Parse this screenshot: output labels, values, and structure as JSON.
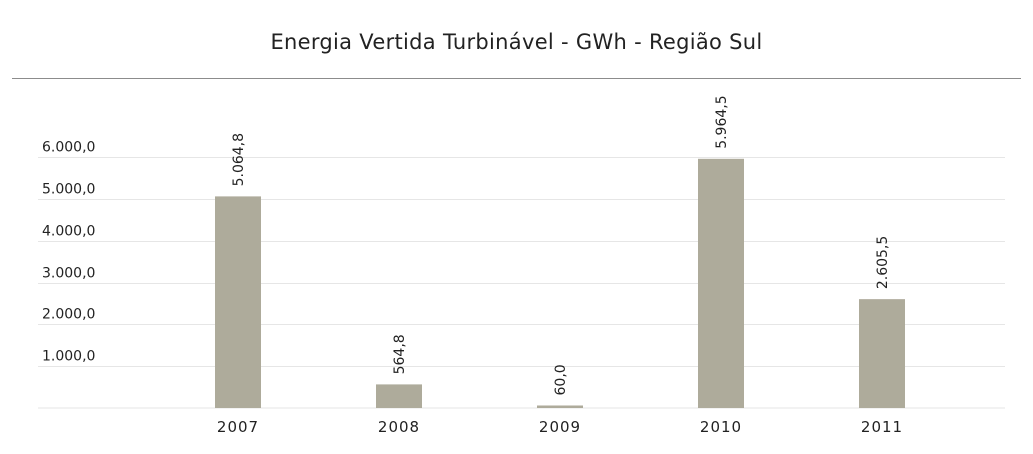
{
  "chart_data": {
    "type": "bar",
    "title": "Energia Vertida Turbinável - GWh - Região Sul",
    "xlabel": "",
    "ylabel": "",
    "categories": [
      "2007",
      "2008",
      "2009",
      "2010",
      "2011"
    ],
    "values": [
      5064.8,
      564.8,
      60.0,
      5964.5,
      2605.5
    ],
    "data_labels": [
      "5.064,8",
      "564,8",
      "60,0",
      "5.964,5",
      "2.605,5"
    ],
    "yticks": [
      1000,
      2000,
      3000,
      4000,
      5000,
      6000
    ],
    "ytick_labels": [
      "1.000,0",
      "2.000,0",
      "3.000,0",
      "4.000,0",
      "5.000,0",
      "6.000,0"
    ],
    "ylim": [
      0,
      6000
    ],
    "grid": true,
    "legend": "none",
    "bar_color": "#aeab9b",
    "grid_color": "#e6e6e6"
  }
}
